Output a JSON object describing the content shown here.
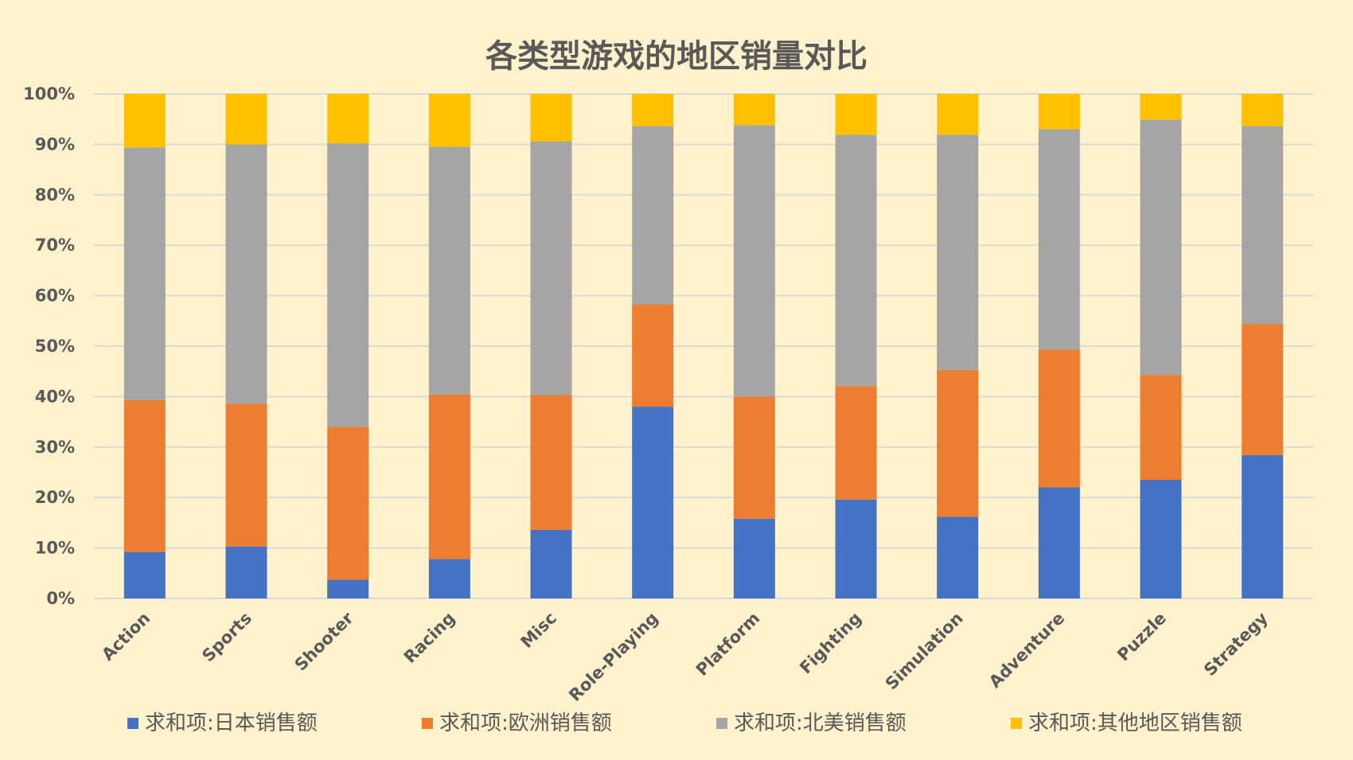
{
  "chart_data": {
    "type": "bar",
    "stacked": "percent",
    "title": "各类型游戏的地区销量对比",
    "xlabel": "",
    "ylabel": "",
    "ylim": [
      0,
      100
    ],
    "yticks": [
      "0%",
      "10%",
      "20%",
      "30%",
      "40%",
      "50%",
      "60%",
      "70%",
      "80%",
      "90%",
      "100%"
    ],
    "categories": [
      "Action",
      "Sports",
      "Shooter",
      "Racing",
      "Misc",
      "Role-Playing",
      "Platform",
      "Fighting",
      "Simulation",
      "Adventure",
      "Puzzle",
      "Strategy"
    ],
    "series": [
      {
        "name": "求和项:日本销售额",
        "color": "#4472C4",
        "values": [
          9.2,
          10.3,
          3.7,
          7.8,
          13.6,
          38.0,
          15.8,
          19.6,
          16.2,
          22.0,
          23.5,
          28.4
        ]
      },
      {
        "name": "求和项:欧洲销售额",
        "color": "#ED7D31",
        "values": [
          30.1,
          28.3,
          30.3,
          32.6,
          26.7,
          20.3,
          24.2,
          22.5,
          29.1,
          27.3,
          20.8,
          26.0
        ]
      },
      {
        "name": "求和项:北美销售额",
        "color": "#A5A5A5",
        "values": [
          50.1,
          51.4,
          56.2,
          49.1,
          50.3,
          35.3,
          53.8,
          49.8,
          46.6,
          43.7,
          50.6,
          39.2
        ]
      },
      {
        "name": "求和项:其他地区销售额",
        "color": "#FFC000",
        "values": [
          10.6,
          10.0,
          9.8,
          10.5,
          9.4,
          6.4,
          6.2,
          8.1,
          8.1,
          7.0,
          5.1,
          6.4
        ]
      }
    ],
    "legend_position": "bottom",
    "grid": true
  }
}
